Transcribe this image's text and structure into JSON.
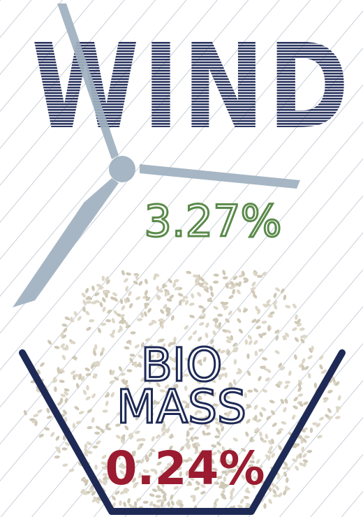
{
  "wind": {
    "title": "WIND",
    "share": "3.27%"
  },
  "biomass": {
    "title_line1": "BIO",
    "title_line2": "MASS",
    "share": "0.24%"
  }
}
